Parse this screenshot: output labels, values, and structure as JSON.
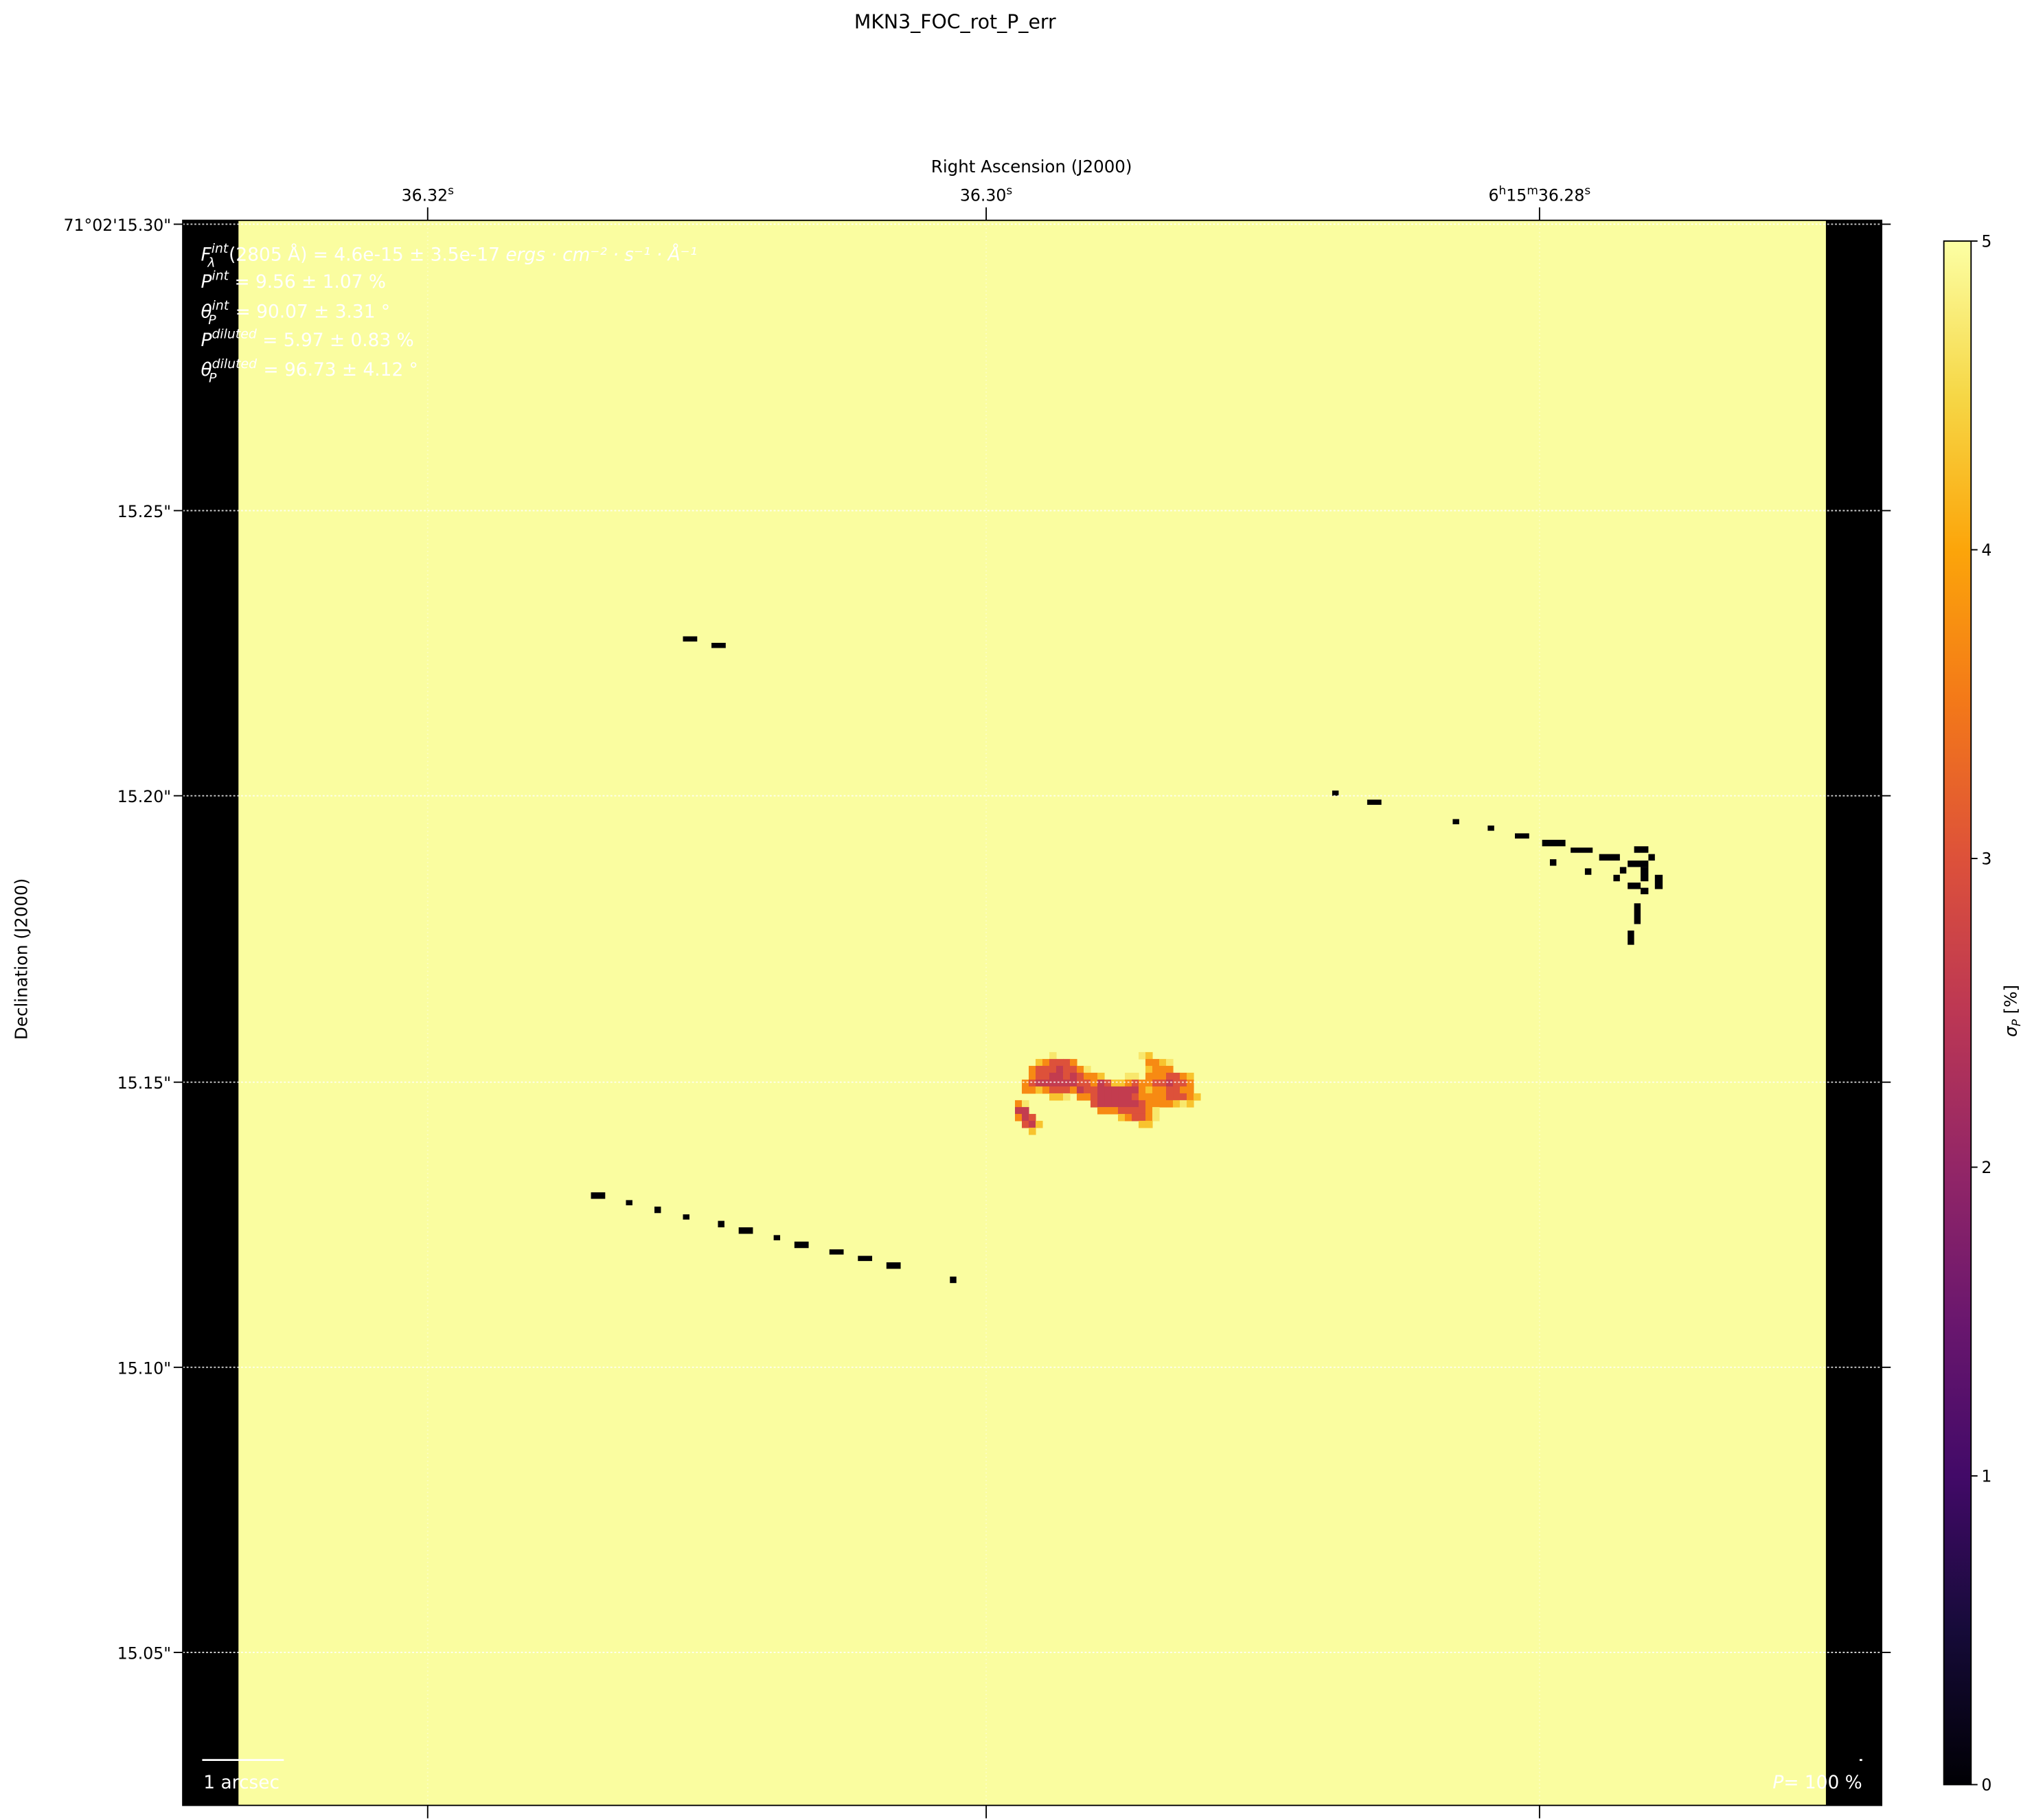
{
  "chart_data": {
    "type": "heatmap",
    "title": "MKN3_FOC_rot_P_err",
    "xlabel": "Right Ascension (J2000)",
    "ylabel": "Declination (J2000)",
    "x_ticks": [
      {
        "main": "36.32",
        "sup": "s"
      },
      {
        "main": "36.30",
        "sup": "s"
      },
      {
        "main": "6",
        "sup": "h",
        "main2": "15",
        "sup2": "m",
        "main3": "36.28",
        "sup3": "s"
      }
    ],
    "y_ticks": [
      "71°02'15.30\"",
      "15.25\"",
      "15.20\"",
      "15.15\"",
      "15.10\"",
      "15.05\""
    ],
    "grid": true,
    "colormap": "inferno",
    "background_value": 5,
    "masked_value": 0,
    "colorbar": {
      "label": "σ",
      "label_sub": "P",
      "label_unit": " [%]",
      "range": [
        0,
        5
      ],
      "ticks": [
        "0",
        "1",
        "2",
        "3",
        "4",
        "5"
      ]
    },
    "core_region_values": [
      [
        5,
        5,
        5,
        5,
        5,
        4.7,
        5,
        5,
        5,
        5,
        5,
        5,
        5,
        5,
        5,
        5,
        5,
        5,
        4.7,
        4.3,
        5,
        5,
        5,
        5,
        5,
        5,
        5
      ],
      [
        5,
        5,
        5,
        4.3,
        3.7,
        3.0,
        3.0,
        3.0,
        3.7,
        5,
        5,
        5,
        5,
        5,
        5,
        5,
        5,
        5,
        5,
        3.7,
        3.7,
        4.3,
        4.7,
        5,
        5,
        5,
        5
      ],
      [
        5,
        5,
        3.7,
        3.0,
        3.0,
        3.0,
        2.6,
        3.0,
        3.0,
        3.7,
        4.7,
        5,
        5,
        5,
        5,
        5,
        5,
        5,
        5,
        4.3,
        3.7,
        3.7,
        3.7,
        5,
        5,
        5,
        5
      ],
      [
        5,
        5,
        3.7,
        3.0,
        3.0,
        2.6,
        2.6,
        3.0,
        2.6,
        3.0,
        3.7,
        3.7,
        4.3,
        5,
        5,
        5,
        4.7,
        4.7,
        5,
        3.7,
        3.7,
        3.7,
        3.0,
        3.0,
        3.7,
        4.3,
        5
      ],
      [
        5,
        3.7,
        3.0,
        2.6,
        2.6,
        2.6,
        2.6,
        2.6,
        2.6,
        3.0,
        3.0,
        3.7,
        2.6,
        3.0,
        4.3,
        4.3,
        3.7,
        3.0,
        3.7,
        3.7,
        3.0,
        3.0,
        2.6,
        3.0,
        3.0,
        3.7,
        5
      ],
      [
        5,
        3.7,
        3.7,
        4.3,
        3.7,
        3.0,
        3.0,
        3.0,
        3.7,
        2.6,
        3.0,
        3.0,
        2.6,
        2.6,
        2.6,
        2.6,
        2.6,
        2.6,
        3.7,
        4.3,
        3.7,
        3.7,
        3.0,
        3.0,
        3.7,
        3.7,
        5
      ],
      [
        5,
        5,
        5,
        5,
        5,
        4.3,
        4.3,
        4.7,
        5,
        3.7,
        3.7,
        3.0,
        2.6,
        2.6,
        2.6,
        2.6,
        2.6,
        3.0,
        3.7,
        3.7,
        3.7,
        3.7,
        3.0,
        3.0,
        3.0,
        3.7,
        4.3
      ],
      [
        3.7,
        4.7,
        5,
        5,
        5,
        5,
        5,
        5,
        5,
        5,
        5,
        3.0,
        2.6,
        2.6,
        2.6,
        2.6,
        2.6,
        2.6,
        3.0,
        3.7,
        3.7,
        3.7,
        3.7,
        4.3,
        4.7,
        4.3,
        5
      ],
      [
        2.6,
        2.6,
        5,
        5,
        5,
        5,
        5,
        5,
        5,
        5,
        5,
        5,
        3.7,
        3.7,
        3.7,
        3.0,
        3.0,
        3.0,
        3.0,
        3.7,
        4.7,
        5,
        5,
        5,
        5,
        5,
        5
      ],
      [
        3.7,
        2.6,
        3.0,
        5,
        5,
        5,
        5,
        5,
        5,
        5,
        5,
        5,
        5,
        5,
        5,
        4.3,
        3.7,
        3.0,
        3.0,
        3.7,
        4.7,
        5,
        5,
        5,
        5,
        5,
        5
      ],
      [
        5,
        3.0,
        2.6,
        4.3,
        5,
        5,
        5,
        5,
        5,
        5,
        5,
        5,
        5,
        5,
        5,
        5,
        5,
        5,
        4.3,
        4.3,
        5,
        5,
        5,
        5,
        5,
        5,
        5
      ],
      [
        5,
        5,
        4.3,
        5,
        5,
        5,
        5,
        5,
        5,
        5,
        5,
        5,
        5,
        5,
        5,
        5,
        5,
        5,
        5,
        5,
        5,
        5,
        5,
        5,
        5,
        5,
        5
      ]
    ],
    "annotations": [
      {
        "sym": "F",
        "sup": "int",
        "sub": "λ",
        "text": "(2805 Å) = 4.6e-15 ± 3.5e-17 ",
        "unit": "ergs · cm⁻² · s⁻¹ · Å⁻¹"
      },
      {
        "sym": "P",
        "sup": "int",
        "sub": "",
        "text": " = 9.56 ± 1.07 %",
        "unit": ""
      },
      {
        "sym": "θ",
        "sup": "int",
        "sub": "P",
        "text": " = 90.07 ± 3.31 °",
        "unit": ""
      },
      {
        "sym": "P",
        "sup": "diluted",
        "sub": "",
        "text": " = 5.97 ± 0.83 %",
        "unit": ""
      },
      {
        "sym": "θ",
        "sup": "diluted",
        "sub": "P",
        "text": " = 96.73 ± 4.12 °",
        "unit": ""
      }
    ],
    "scale_bar_label": "1 arcsec",
    "vector_scale_label": {
      "sym": "P",
      "text": "= 100 %"
    }
  }
}
